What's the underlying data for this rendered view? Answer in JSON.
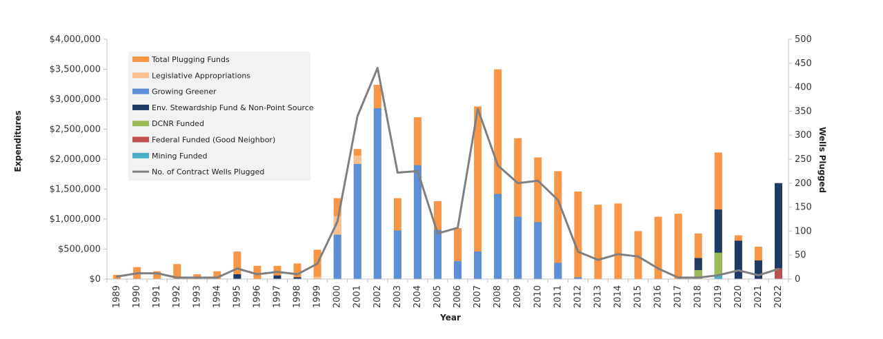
{
  "chart_data": {
    "type": "bar",
    "stacked": true,
    "title": "",
    "xlabel": "Year",
    "ylabel": "Expenditures",
    "y2label": "Wells Plugged",
    "ylim": [
      0,
      4000000
    ],
    "y2lim": [
      0,
      500
    ],
    "yticks": [
      "$0",
      "$500,000",
      "$1,000,000",
      "$1,500,000",
      "$2,000,000",
      "$2,500,000",
      "$3,000,000",
      "$3,500,000",
      "$4,000,000"
    ],
    "y2ticks": [
      "0",
      "50",
      "100",
      "150",
      "200",
      "250",
      "300",
      "350",
      "400",
      "450",
      "500"
    ],
    "legend_position": "top-left",
    "categories": [
      "1989",
      "1990",
      "1991",
      "1992",
      "1993",
      "1994",
      "1995",
      "1996",
      "1997",
      "1998",
      "1999",
      "2000",
      "2001",
      "2002",
      "2003",
      "2004",
      "2005",
      "2006",
      "2007",
      "2008",
      "2009",
      "2010",
      "2011",
      "2012",
      "2013",
      "2014",
      "2015",
      "2016",
      "2017",
      "2018",
      "2019",
      "2020",
      "2021",
      "2022"
    ],
    "series": [
      {
        "name": "Total Plugging Funds",
        "color": "#F79646",
        "kind": "bar",
        "values": [
          70000,
          200000,
          130000,
          250000,
          80000,
          130000,
          460000,
          220000,
          220000,
          260000,
          490000,
          1350000,
          2170000,
          3240000,
          1350000,
          2700000,
          1300000,
          850000,
          2880000,
          3500000,
          2350000,
          2030000,
          1800000,
          1460000,
          1240000,
          1260000,
          800000,
          1040000,
          1090000,
          760000,
          2110000,
          730000,
          540000,
          1600000
        ]
      },
      {
        "name": "Legislative Appropriations",
        "color": "#FAC090",
        "kind": "bar",
        "values": [
          0,
          0,
          0,
          0,
          0,
          0,
          0,
          0,
          0,
          0,
          40000,
          1050000,
          2060000,
          0,
          0,
          0,
          0,
          0,
          0,
          0,
          0,
          0,
          0,
          0,
          0,
          0,
          0,
          0,
          0,
          0,
          0,
          0,
          0,
          0
        ]
      },
      {
        "name": "Growing Greener",
        "color": "#5B8FD6",
        "kind": "bar",
        "values": [
          0,
          0,
          0,
          0,
          0,
          0,
          0,
          0,
          0,
          0,
          0,
          740000,
          1920000,
          2850000,
          810000,
          1900000,
          820000,
          300000,
          460000,
          1420000,
          1040000,
          950000,
          270000,
          30000,
          0,
          0,
          0,
          0,
          0,
          0,
          0,
          0,
          0,
          0
        ]
      },
      {
        "name": "Env. Stewardship Fund & Non-Point Source",
        "color": "#1F3A64",
        "kind": "bar",
        "values": [
          0,
          0,
          0,
          0,
          0,
          0,
          80000,
          0,
          60000,
          30000,
          0,
          0,
          0,
          0,
          0,
          0,
          0,
          0,
          0,
          0,
          0,
          0,
          0,
          0,
          0,
          0,
          0,
          0,
          0,
          350000,
          1160000,
          640000,
          310000,
          1600000
        ]
      },
      {
        "name": "DCNR Funded",
        "color": "#9BBB59",
        "kind": "bar",
        "values": [
          0,
          0,
          0,
          0,
          0,
          0,
          0,
          0,
          0,
          0,
          0,
          0,
          0,
          0,
          0,
          0,
          0,
          0,
          0,
          0,
          0,
          0,
          0,
          0,
          0,
          0,
          0,
          0,
          0,
          150000,
          440000,
          0,
          0,
          0
        ]
      },
      {
        "name": "Federal Funded (Good Neighbor)",
        "color": "#C0504D",
        "kind": "bar",
        "values": [
          0,
          0,
          0,
          0,
          0,
          0,
          0,
          0,
          0,
          0,
          0,
          0,
          0,
          0,
          0,
          0,
          0,
          0,
          0,
          0,
          0,
          0,
          0,
          0,
          0,
          0,
          0,
          0,
          0,
          0,
          0,
          0,
          0,
          180000
        ]
      },
      {
        "name": "Mining Funded",
        "color": "#4BACC6",
        "kind": "bar",
        "values": [
          0,
          0,
          0,
          0,
          0,
          0,
          0,
          0,
          0,
          0,
          0,
          0,
          0,
          0,
          0,
          0,
          0,
          0,
          0,
          0,
          0,
          0,
          0,
          0,
          0,
          0,
          0,
          0,
          0,
          0,
          60000,
          0,
          0,
          0
        ]
      },
      {
        "name": "No. of Contract Wells Plugged",
        "color": "#7F7F7F",
        "kind": "line",
        "axis": "right",
        "values": [
          5,
          12,
          12,
          3,
          3,
          3,
          22,
          10,
          15,
          10,
          32,
          120,
          340,
          440,
          222,
          225,
          95,
          107,
          355,
          237,
          200,
          205,
          165,
          57,
          40,
          52,
          47,
          22,
          3,
          3,
          8,
          18,
          8,
          21
        ]
      }
    ]
  }
}
